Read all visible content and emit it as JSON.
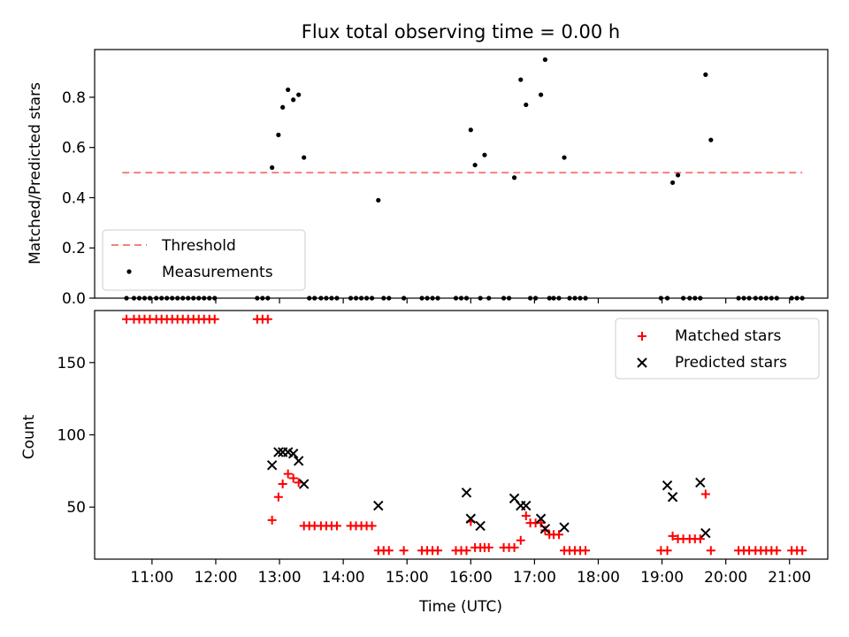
{
  "chart_data": [
    {
      "type": "scatter",
      "title": "Flux total observing time = 0.00 h",
      "xlabel": "",
      "ylabel": "Matched/Predicted stars",
      "ylim": [
        0,
        0.99
      ],
      "yticks": [
        "0.0",
        "0.2",
        "0.4",
        "0.6",
        "0.8"
      ],
      "ytick_values": [
        0,
        0.2,
        0.4,
        0.6,
        0.8
      ],
      "legend_position": "lower-left",
      "threshold": {
        "name": "Threshold",
        "value": 0.5,
        "x_range": [
          "10:32",
          "21:12"
        ],
        "color": "#f77f7f",
        "style": "dashed"
      },
      "series": [
        {
          "name": "Measurements",
          "color": "#000000",
          "marker": "dot",
          "x": [
            "10:36",
            "10:43",
            "10:48",
            "10:53",
            "10:58",
            "11:04",
            "11:09",
            "11:14",
            "11:19",
            "11:24",
            "11:29",
            "11:34",
            "11:39",
            "11:44",
            "11:49",
            "11:54",
            "11:59",
            "12:39",
            "12:44",
            "12:49",
            "12:53",
            "12:59",
            "13:03",
            "13:08",
            "13:13",
            "13:18",
            "13:23",
            "13:28",
            "13:33",
            "13:39",
            "13:44",
            "13:49",
            "13:54",
            "14:07",
            "14:12",
            "14:17",
            "14:22",
            "14:27",
            "14:33",
            "14:38",
            "14:43",
            "14:57",
            "15:14",
            "15:19",
            "15:24",
            "15:29",
            "15:46",
            "15:51",
            "15:56",
            "16:00",
            "16:04",
            "16:09",
            "16:13",
            "16:17",
            "16:31",
            "16:36",
            "16:41",
            "16:47",
            "16:52",
            "16:56",
            "17:01",
            "17:06",
            "17:10",
            "17:14",
            "17:18",
            "17:23",
            "17:28",
            "17:33",
            "17:38",
            "17:43",
            "17:48",
            "18:59",
            "19:05",
            "19:10",
            "19:15",
            "19:20",
            "19:26",
            "19:31",
            "19:36",
            "19:41",
            "19:46",
            "20:12",
            "20:17",
            "20:22",
            "20:28",
            "20:33",
            "20:38",
            "20:43",
            "20:48",
            "21:02",
            "21:07",
            "21:12"
          ],
          "y": [
            0,
            0,
            0,
            0,
            0,
            0,
            0,
            0,
            0,
            0,
            0,
            0,
            0,
            0,
            0,
            0,
            0,
            0,
            0,
            0,
            0.52,
            0.65,
            0.76,
            0.83,
            0.79,
            0.81,
            0.56,
            0,
            0,
            0,
            0,
            0,
            0,
            0,
            0,
            0,
            0,
            0,
            0.39,
            0,
            0,
            0,
            0,
            0,
            0,
            0,
            0,
            0,
            0,
            0.67,
            0.53,
            0,
            0.57,
            0,
            0,
            0,
            0.48,
            0.87,
            0.77,
            0,
            0,
            0.81,
            0.95,
            0,
            0,
            0,
            0.56,
            0,
            0,
            0,
            0,
            0,
            0,
            0.46,
            0.49,
            0,
            0,
            0,
            0,
            0.89,
            0.63,
            0,
            0,
            0,
            0,
            0,
            0,
            0,
            0,
            0,
            0,
            0
          ]
        }
      ]
    },
    {
      "type": "scatter",
      "title": "",
      "xlabel": "Time (UTC)",
      "ylabel": "Count",
      "xlim": [
        "10:06",
        "21:36"
      ],
      "xticks": [
        "11:00",
        "12:00",
        "13:00",
        "14:00",
        "15:00",
        "16:00",
        "17:00",
        "18:00",
        "19:00",
        "20:00",
        "21:00"
      ],
      "ylim": [
        14,
        186
      ],
      "yticks": [
        "50",
        "100",
        "150"
      ],
      "ytick_values": [
        50,
        100,
        150
      ],
      "legend_position": "top-right",
      "series": [
        {
          "name": "Matched stars",
          "color": "#ff0000",
          "marker": "plus",
          "x": [
            "10:36",
            "10:43",
            "10:48",
            "10:53",
            "10:58",
            "11:04",
            "11:09",
            "11:14",
            "11:19",
            "11:24",
            "11:29",
            "11:34",
            "11:39",
            "11:44",
            "11:49",
            "11:54",
            "11:59",
            "12:39",
            "12:44",
            "12:49",
            "12:53",
            "12:59",
            "13:03",
            "13:08",
            "13:13",
            "13:18",
            "13:23",
            "13:28",
            "13:33",
            "13:39",
            "13:44",
            "13:49",
            "13:54",
            "14:07",
            "14:12",
            "14:17",
            "14:22",
            "14:27",
            "14:33",
            "14:38",
            "14:43",
            "14:57",
            "15:14",
            "15:19",
            "15:24",
            "15:29",
            "15:46",
            "15:51",
            "15:56",
            "16:00",
            "16:04",
            "16:09",
            "16:13",
            "16:17",
            "16:31",
            "16:36",
            "16:41",
            "16:47",
            "16:52",
            "16:56",
            "17:01",
            "17:06",
            "17:10",
            "17:14",
            "17:18",
            "17:23",
            "17:28",
            "17:33",
            "17:38",
            "17:43",
            "17:48",
            "18:59",
            "19:05",
            "19:10",
            "19:15",
            "19:20",
            "19:26",
            "19:31",
            "19:36",
            "19:41",
            "19:46",
            "20:12",
            "20:17",
            "20:22",
            "20:28",
            "20:33",
            "20:38",
            "20:43",
            "20:48",
            "21:02",
            "21:07",
            "21:12"
          ],
          "y": [
            180,
            180,
            180,
            180,
            180,
            180,
            180,
            180,
            180,
            180,
            180,
            180,
            180,
            180,
            180,
            180,
            180,
            180,
            180,
            180,
            41,
            57,
            66,
            73,
            70,
            67,
            37,
            37,
            37,
            37,
            37,
            37,
            37,
            37,
            37,
            37,
            37,
            37,
            20,
            20,
            20,
            20,
            20,
            20,
            20,
            20,
            20,
            20,
            20,
            40,
            22,
            22,
            22,
            22,
            22,
            22,
            22,
            27,
            44,
            39,
            39,
            39,
            34,
            31,
            31,
            31,
            20,
            20,
            20,
            20,
            20,
            20,
            20,
            30,
            28,
            28,
            28,
            28,
            28,
            59,
            20,
            20,
            20,
            20,
            20,
            20,
            20,
            20,
            20,
            20,
            20,
            20
          ]
        },
        {
          "name": "Predicted stars",
          "color": "#000000",
          "marker": "x",
          "x": [
            "12:53",
            "12:59",
            "13:03",
            "13:08",
            "13:13",
            "13:18",
            "13:23",
            "14:33",
            "15:56",
            "16:00",
            "16:09",
            "16:41",
            "16:47",
            "16:52",
            "17:06",
            "17:10",
            "17:28",
            "19:05",
            "19:10",
            "19:36",
            "19:41"
          ],
          "y": [
            79,
            88,
            88,
            88,
            87,
            82,
            66,
            51,
            60,
            42,
            37,
            56,
            51,
            51,
            42,
            35,
            36,
            65,
            57,
            67,
            32
          ]
        }
      ]
    }
  ]
}
